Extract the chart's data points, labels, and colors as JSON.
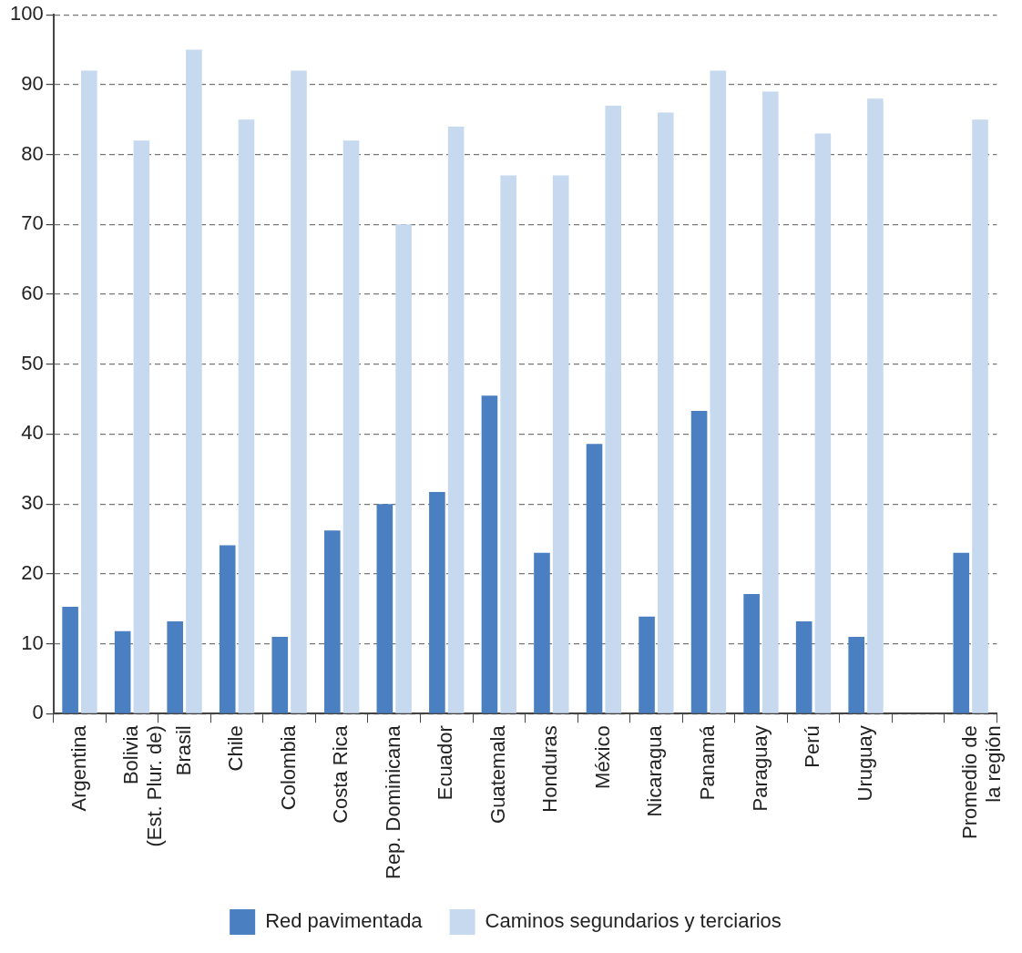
{
  "chart_data": {
    "type": "bar",
    "categories": [
      "Argentina",
      "Bolivia\n(Est. Plur. de)",
      "Brasil",
      "Chile",
      "Colombia",
      "Costa Rica",
      "Rep. Dominicana",
      "Ecuador",
      "Guatemala",
      "Honduras",
      "México",
      "Nicaragua",
      "Panamá",
      "Paraguay",
      "Perú",
      "Uruguay",
      null,
      "Promedio de\nla región"
    ],
    "series": [
      {
        "name": "Red pavimentada",
        "color": "#4a7fc1",
        "values": [
          15.3,
          11.8,
          13.2,
          24.1,
          11,
          26.2,
          30,
          31.7,
          45.5,
          23,
          38.6,
          13.9,
          43.3,
          17.1,
          13.2,
          11,
          null,
          23
        ]
      },
      {
        "name": "Caminos segundarios y terciarios",
        "color": "#c6d9ef",
        "values": [
          92,
          82,
          95,
          85,
          92,
          82,
          70,
          84,
          77,
          77,
          87,
          86,
          92,
          89,
          83,
          88,
          null,
          85
        ]
      }
    ],
    "ylim": [
      0,
      100
    ],
    "yticks": [
      0,
      10,
      20,
      30,
      40,
      50,
      60,
      70,
      80,
      90,
      100
    ],
    "grid": "y",
    "legend": "bottom"
  }
}
